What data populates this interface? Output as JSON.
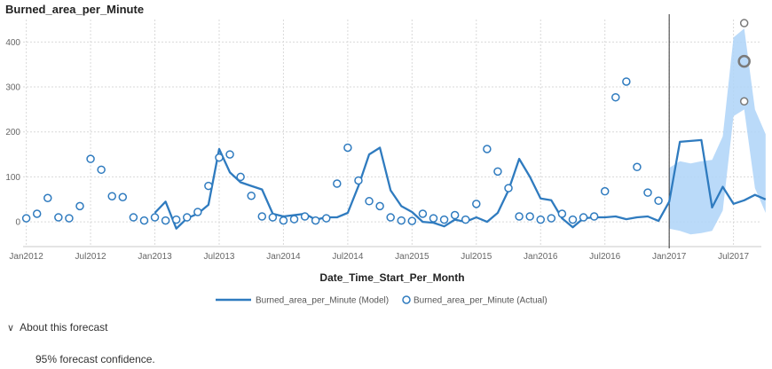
{
  "chart_data": {
    "type": "line",
    "title": "Burned_area_per_Minute",
    "xlabel": "Date_Time_Start_Per_Month",
    "ylabel": "",
    "ylim": [
      -55,
      450
    ],
    "yticks": [
      0,
      100,
      200,
      300,
      400
    ],
    "x_start": "Jan2012",
    "x_end": "Sep2017",
    "forecast_start": "Jan2017",
    "xticks": [
      "Jan2012",
      "Jul2012",
      "Jan2013",
      "Jul2013",
      "Jan2014",
      "Jul2014",
      "Jan2015",
      "Jul2015",
      "Jan2016",
      "Jul2016",
      "Jan2017",
      "Jul2017"
    ],
    "model_months": [
      "Jan2013",
      "Feb2013",
      "Mar2013",
      "Apr2013",
      "May2013",
      "Jun2013",
      "Jul2013",
      "Aug2013",
      "Sep2013",
      "Oct2013",
      "Nov2013",
      "Dec2013",
      "Jan2014",
      "Feb2014",
      "Mar2014",
      "Apr2014",
      "May2014",
      "Jun2014",
      "Jul2014",
      "Aug2014",
      "Sep2014",
      "Oct2014",
      "Nov2014",
      "Dec2014",
      "Jan2015",
      "Feb2015",
      "Mar2015",
      "Apr2015",
      "May2015",
      "Jun2015",
      "Jul2015",
      "Aug2015",
      "Sep2015",
      "Oct2015",
      "Nov2015",
      "Dec2015",
      "Jan2016",
      "Feb2016",
      "Mar2016",
      "Apr2016",
      "May2016",
      "Jun2016",
      "Jul2016",
      "Aug2016",
      "Sep2016",
      "Oct2016",
      "Nov2016",
      "Dec2016",
      "Jan2017",
      "Feb2017",
      "Mar2017",
      "Apr2017",
      "May2017",
      "Jun2017",
      "Jul2017",
      "Aug2017",
      "Sep2017",
      "Oct2017"
    ],
    "series": [
      {
        "name": "Burned_area_per_Minute (Model)",
        "kind": "line",
        "color": "#2f7bbf",
        "values": [
          20,
          45,
          -15,
          8,
          18,
          38,
          162,
          110,
          88,
          80,
          72,
          18,
          12,
          15,
          18,
          5,
          10,
          10,
          20,
          80,
          150,
          165,
          70,
          35,
          22,
          0,
          -2,
          -10,
          5,
          0,
          10,
          0,
          20,
          70,
          140,
          100,
          52,
          48,
          8,
          -12,
          8,
          10,
          10,
          12,
          6,
          10,
          12,
          2,
          45,
          178,
          180,
          182,
          32,
          78,
          40,
          48,
          60,
          50
        ]
      },
      {
        "name": "Burned_area_per_Minute (Actual)",
        "kind": "points",
        "color": "#2f7bbf",
        "months": [
          "Jan2012",
          "Feb2012",
          "Mar2012",
          "Apr2012",
          "May2012",
          "Jun2012",
          "Jul2012",
          "Aug2012",
          "Sep2012",
          "Oct2012",
          "Nov2012",
          "Dec2012",
          "Jan2013",
          "Feb2013",
          "Mar2013",
          "Apr2013",
          "May2013",
          "Jun2013",
          "Jul2013",
          "Aug2013",
          "Sep2013",
          "Oct2013",
          "Nov2013",
          "Dec2013",
          "Jan2014",
          "Feb2014",
          "Mar2014",
          "Apr2014",
          "May2014",
          "Jun2014",
          "Jul2014",
          "Aug2014",
          "Sep2014",
          "Oct2014",
          "Nov2014",
          "Dec2014",
          "Jan2015",
          "Feb2015",
          "Mar2015",
          "Apr2015",
          "May2015",
          "Jun2015",
          "Jul2015",
          "Aug2015",
          "Sep2015",
          "Oct2015",
          "Nov2015",
          "Dec2015",
          "Jan2016",
          "Feb2016",
          "Mar2016",
          "Apr2016",
          "May2016",
          "Jun2016",
          "Jul2016",
          "Aug2016",
          "Sep2016",
          "Oct2016",
          "Nov2016",
          "Dec2016"
        ],
        "values": [
          8,
          18,
          53,
          10,
          8,
          35,
          140,
          116,
          57,
          55,
          10,
          3,
          10,
          3,
          5,
          10,
          22,
          80,
          143,
          150,
          100,
          58,
          12,
          10,
          3,
          6,
          12,
          3,
          8,
          85,
          165,
          92,
          46,
          35,
          10,
          3,
          2,
          18,
          8,
          5,
          15,
          5,
          40,
          162,
          112,
          75,
          12,
          12,
          5,
          8,
          18,
          5,
          10,
          12,
          68,
          277,
          312,
          122,
          65,
          47
        ]
      }
    ],
    "forecast": {
      "months": [
        "Jan2017",
        "Feb2017",
        "Mar2017",
        "Apr2017",
        "May2017",
        "Jun2017",
        "Jul2017",
        "Aug2017",
        "Sep2017",
        "Oct2017"
      ],
      "lower": [
        -15,
        -20,
        -28,
        -25,
        -20,
        25,
        235,
        250,
        75,
        20
      ],
      "upper": [
        120,
        135,
        130,
        135,
        138,
        190,
        410,
        430,
        250,
        195
      ],
      "actual_points": [
        {
          "month": "Aug2017",
          "value": 442
        },
        {
          "month": "Aug2017",
          "value": 357,
          "highlight": true
        },
        {
          "month": "Aug2017",
          "value": 268
        }
      ]
    },
    "colors": {
      "line": "#2f7bbf",
      "band": "#aed4f8",
      "axis": "#c8c8c8",
      "divider": "#333333",
      "grey_point": "#7a7a7a"
    },
    "grid": true,
    "legend_position": "bottom-center"
  },
  "about": {
    "label": "About this forecast",
    "icon": "chevron-down-icon",
    "text": "95% forecast confidence."
  }
}
